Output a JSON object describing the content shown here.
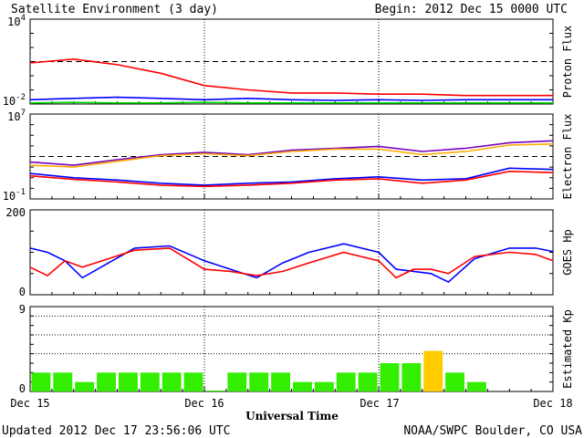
{
  "header": {
    "title": "Satellite Environment (3 day)",
    "begin": "Begin:  2012 Dec 15 0000 UTC"
  },
  "footer": {
    "updated": "Updated 2012 Dec 17 23:56:06 UTC",
    "source": "NOAA/SWPC Boulder, CO USA"
  },
  "x_axis": {
    "label": "Universal Time",
    "ticks": [
      "Dec 15",
      "Dec 16",
      "Dec 17",
      "Dec 18"
    ]
  },
  "colors": {
    "red": "#ff0000",
    "blue": "#0000ff",
    "green": "#00dd00",
    "purple": "#7700bb",
    "orange": "#ffaa00",
    "kp_green": "#33ee00",
    "kp_yellow": "#ffcc00"
  },
  "chart_data": [
    {
      "type": "line",
      "name": "proton-flux",
      "ylabel": "Proton Flux",
      "yscale": "log",
      "ylim": [
        0.01,
        10000
      ],
      "yticks": [
        {
          "base": "10",
          "exp": "4"
        },
        {
          "base": "10",
          "exp": "-2"
        }
      ],
      "threshold": 10,
      "x": [
        0,
        0.25,
        0.5,
        0.75,
        1.0,
        1.25,
        1.5,
        1.75,
        2.0,
        2.25,
        2.5,
        2.75,
        3.0
      ],
      "series": [
        {
          "color_key": "red",
          "values": [
            8,
            15,
            6,
            1.5,
            0.2,
            0.1,
            0.06,
            0.06,
            0.05,
            0.05,
            0.04,
            0.04,
            0.04
          ]
        },
        {
          "color_key": "blue",
          "values": [
            0.02,
            0.025,
            0.03,
            0.025,
            0.02,
            0.025,
            0.02,
            0.018,
            0.02,
            0.018,
            0.02,
            0.02,
            0.02
          ]
        },
        {
          "color_key": "green",
          "values": [
            0.012,
            0.013,
            0.012,
            0.012,
            0.013,
            0.012,
            0.012,
            0.012,
            0.012,
            0.012,
            0.012,
            0.012,
            0.012
          ]
        }
      ]
    },
    {
      "type": "line",
      "name": "electron-flux",
      "ylabel": "Electron Flux",
      "yscale": "log",
      "ylim": [
        0.1,
        10000000
      ],
      "yticks": [
        {
          "base": "10",
          "exp": "7"
        },
        {
          "base": "10",
          "exp": "-1"
        }
      ],
      "threshold": 1000,
      "x": [
        0,
        0.25,
        0.5,
        0.75,
        1.0,
        1.25,
        1.5,
        1.75,
        2.0,
        2.25,
        2.5,
        2.75,
        3.0
      ],
      "series": [
        {
          "color_key": "purple",
          "values": [
            300,
            150,
            500,
            1500,
            2500,
            1500,
            4000,
            6000,
            9000,
            3000,
            6000,
            20000,
            30000
          ]
        },
        {
          "color_key": "orange",
          "values": [
            150,
            100,
            350,
            1200,
            1800,
            1200,
            3000,
            5000,
            5000,
            1500,
            3000,
            12000,
            15000
          ]
        },
        {
          "color_key": "blue",
          "values": [
            25,
            10,
            6,
            3,
            2,
            3,
            4,
            8,
            12,
            6,
            8,
            80,
            60
          ]
        },
        {
          "color_key": "red",
          "values": [
            15,
            7,
            4,
            2,
            1.5,
            2,
            3,
            6,
            8,
            3,
            6,
            40,
            30
          ]
        }
      ]
    },
    {
      "type": "line",
      "name": "goes-hp",
      "ylabel": "GOES Hp",
      "yscale": "linear",
      "ylim": [
        0,
        200
      ],
      "yticks": [
        {
          "base": "200",
          "exp": ""
        },
        {
          "base": "0",
          "exp": ""
        }
      ],
      "x": [
        0,
        0.1,
        0.2,
        0.3,
        0.45,
        0.6,
        0.8,
        1.0,
        1.15,
        1.3,
        1.45,
        1.6,
        1.8,
        2.0,
        2.1,
        2.2,
        2.3,
        2.4,
        2.55,
        2.75,
        2.9,
        3.0
      ],
      "series": [
        {
          "color_key": "blue",
          "values": [
            110,
            100,
            80,
            40,
            75,
            110,
            115,
            80,
            60,
            40,
            75,
            100,
            120,
            100,
            60,
            55,
            50,
            30,
            85,
            110,
            110,
            102
          ]
        },
        {
          "color_key": "red",
          "values": [
            65,
            45,
            80,
            65,
            85,
            105,
            110,
            60,
            55,
            45,
            55,
            75,
            100,
            80,
            40,
            60,
            60,
            50,
            90,
            100,
            95,
            80
          ]
        }
      ]
    },
    {
      "type": "bar",
      "name": "estimated-kp",
      "ylabel": "Estimated Kp",
      "ylim": [
        0,
        9
      ],
      "yticks": [
        {
          "base": "9",
          "exp": ""
        },
        {
          "base": "0",
          "exp": ""
        }
      ],
      "values": [
        2,
        2,
        1,
        2,
        2,
        2,
        2,
        2,
        0.1,
        2,
        2,
        2,
        1,
        1,
        2,
        2,
        3,
        3,
        4.3,
        2,
        1
      ],
      "yellow_min": 4
    }
  ]
}
